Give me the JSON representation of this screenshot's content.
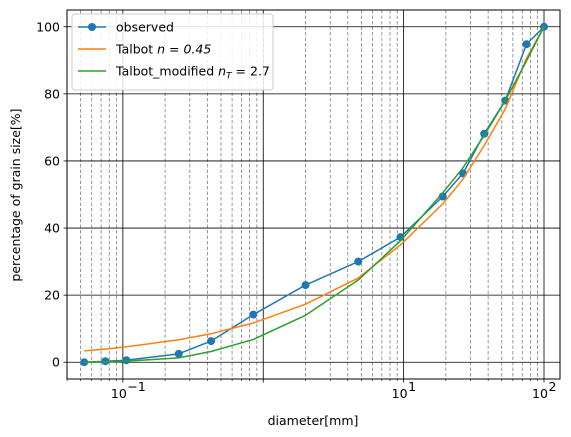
{
  "chart_data": {
    "type": "line",
    "xlabel": "diameter[mm]",
    "ylabel": "percentage of grain size[%]",
    "x_scale": "log",
    "xlim": [
      0.04,
      130
    ],
    "ylim": [
      -5,
      105
    ],
    "y_ticks": [
      0,
      20,
      40,
      60,
      80,
      100
    ],
    "x_ticks": [
      {
        "value": 0.1,
        "label": "10",
        "exponent": "−1"
      },
      {
        "value": 10,
        "label": "10",
        "exponent": "1"
      },
      {
        "value": 100,
        "label": "10",
        "exponent": "2"
      }
    ],
    "grid": {
      "major": true,
      "minor_x_dashed": true
    },
    "legend_position": "top-left",
    "series": [
      {
        "name": "observed",
        "color": "#1f77b4",
        "marker": "circle",
        "x": [
          0.053,
          0.075,
          0.106,
          0.25,
          0.425,
          0.85,
          2.0,
          4.75,
          9.5,
          19.0,
          26.5,
          37.5,
          53.0,
          75.0,
          100.0
        ],
        "y": [
          0,
          0.3,
          0.6,
          2.5,
          6.3,
          14.2,
          23.0,
          30.0,
          37.3,
          49.4,
          56.3,
          68.1,
          78.0,
          94.8,
          100.0
        ]
      },
      {
        "name": "Talbot ",
        "name_math": "n = 0.45",
        "color": "#ff7f0e",
        "marker": "none",
        "x": [
          0.053,
          0.075,
          0.106,
          0.25,
          0.425,
          0.85,
          2.0,
          4.75,
          9.5,
          19.0,
          26.5,
          37.5,
          53.0,
          75.0,
          100.0
        ],
        "y": [
          3.4,
          3.9,
          4.6,
          6.7,
          8.5,
          11.7,
          17.3,
          25.1,
          35.0,
          47.2,
          54.6,
          64.6,
          75.5,
          90.6,
          100.0
        ]
      },
      {
        "name": "Talbot_modified ",
        "name_math": "n",
        "name_sub": "T",
        "name_tail": " = 2.7",
        "color": "#2ca02c",
        "marker": "none",
        "x": [
          0.053,
          0.075,
          0.106,
          0.25,
          0.425,
          0.85,
          2.0,
          4.75,
          9.5,
          19.0,
          26.5,
          37.5,
          53.0,
          75.0,
          100.0
        ],
        "y": [
          0,
          0.1,
          0.3,
          1.3,
          3.2,
          6.8,
          14.0,
          24.5,
          36.2,
          50.5,
          58.0,
          67.6,
          78.0,
          89.8,
          100.0
        ]
      }
    ]
  }
}
